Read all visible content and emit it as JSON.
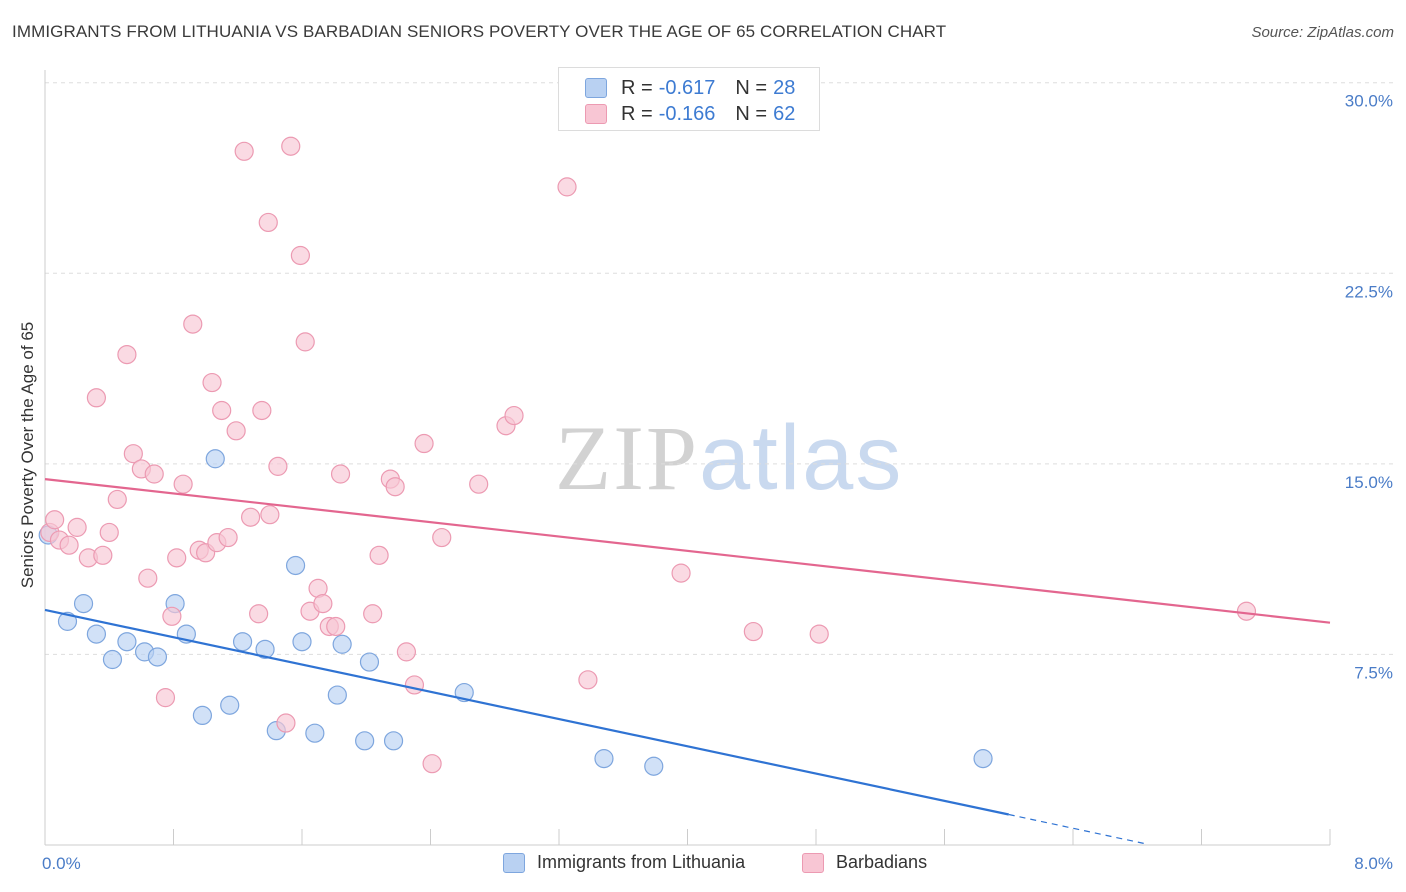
{
  "header": {
    "title": "IMMIGRANTS FROM LITHUANIA VS BARBADIAN SENIORS POVERTY OVER THE AGE OF 65 CORRELATION CHART",
    "source": "Source: ZipAtlas.com"
  },
  "watermark": {
    "zip": "ZIP",
    "atlas": "atlas"
  },
  "legend": {
    "rows": [
      {
        "r_label": "R =",
        "r_value": "-0.617",
        "n_label": "N =",
        "n_value": "28",
        "fill": "#b9d1f2",
        "stroke": "#7ea6de"
      },
      {
        "r_label": "R =",
        "r_value": "-0.166",
        "n_label": "N =",
        "n_value": "62",
        "fill": "#f8c6d4",
        "stroke": "#ec9ab2"
      }
    ]
  },
  "colors": {
    "blue_point_fill": "#b9d1f2",
    "blue_point_stroke": "#7ea6de",
    "blue_line": "#2f73d3",
    "pink_point_fill": "#f8c6d4",
    "pink_point_stroke": "#ec9ab2",
    "pink_line": "#e3668f",
    "grid": "#dddddd",
    "axis": "#cccccc"
  },
  "chart_data": {
    "type": "scatter",
    "title": "IMMIGRANTS FROM LITHUANIA VS BARBADIAN SENIORS POVERTY OVER THE AGE OF 65 CORRELATION CHART",
    "xlabel": "",
    "ylabel": "Seniors Poverty Over the Age of 65",
    "xlim": [
      0,
      8
    ],
    "ylim": [
      0,
      30.5
    ],
    "x_tick_labels": [
      "0.0%",
      "8.0%"
    ],
    "y_ticks": [
      7.5,
      15.0,
      22.5,
      30.0
    ],
    "y_tick_labels": [
      "7.5%",
      "15.0%",
      "22.5%",
      "30.0%"
    ],
    "grid": true,
    "legend_position": "top-center",
    "series": [
      {
        "name": "Immigrants from Lithuania",
        "color": "#7ea6de",
        "points": [
          [
            0.02,
            12.2
          ],
          [
            0.14,
            8.8
          ],
          [
            0.24,
            9.5
          ],
          [
            0.32,
            8.3
          ],
          [
            0.42,
            7.3
          ],
          [
            0.51,
            8.0
          ],
          [
            0.62,
            7.6
          ],
          [
            0.7,
            7.4
          ],
          [
            0.81,
            9.5
          ],
          [
            0.88,
            8.3
          ],
          [
            0.98,
            5.1
          ],
          [
            1.06,
            15.2
          ],
          [
            1.15,
            5.5
          ],
          [
            1.23,
            8.0
          ],
          [
            1.37,
            7.7
          ],
          [
            1.44,
            4.5
          ],
          [
            1.56,
            11.0
          ],
          [
            1.6,
            8.0
          ],
          [
            1.68,
            4.4
          ],
          [
            1.82,
            5.9
          ],
          [
            1.85,
            7.9
          ],
          [
            1.99,
            4.1
          ],
          [
            2.02,
            7.2
          ],
          [
            2.17,
            4.1
          ],
          [
            2.61,
            6.0
          ],
          [
            3.48,
            3.4
          ],
          [
            3.79,
            3.1
          ],
          [
            5.84,
            3.4
          ]
        ],
        "trend": {
          "x": [
            0.0,
            6.0
          ],
          "y": [
            9.25,
            1.2
          ],
          "dashed_to_x": 6.85,
          "dashed_to_y": 0.05
        }
      },
      {
        "name": "Barbadians",
        "color": "#ec9ab2",
        "points": [
          [
            0.03,
            12.3
          ],
          [
            0.06,
            12.8
          ],
          [
            0.09,
            12.0
          ],
          [
            0.15,
            11.8
          ],
          [
            0.2,
            12.5
          ],
          [
            0.27,
            11.3
          ],
          [
            0.32,
            17.6
          ],
          [
            0.36,
            11.4
          ],
          [
            0.4,
            12.3
          ],
          [
            0.45,
            13.6
          ],
          [
            0.51,
            19.3
          ],
          [
            0.55,
            15.4
          ],
          [
            0.6,
            14.8
          ],
          [
            0.64,
            10.5
          ],
          [
            0.68,
            14.6
          ],
          [
            0.75,
            5.8
          ],
          [
            0.79,
            9.0
          ],
          [
            0.82,
            11.3
          ],
          [
            0.86,
            14.2
          ],
          [
            0.92,
            20.5
          ],
          [
            0.96,
            11.6
          ],
          [
            1.0,
            11.5
          ],
          [
            1.04,
            18.2
          ],
          [
            1.07,
            11.9
          ],
          [
            1.1,
            17.1
          ],
          [
            1.14,
            12.1
          ],
          [
            1.19,
            16.3
          ],
          [
            1.24,
            27.3
          ],
          [
            1.28,
            12.9
          ],
          [
            1.33,
            9.1
          ],
          [
            1.35,
            17.1
          ],
          [
            1.39,
            24.5
          ],
          [
            1.45,
            14.9
          ],
          [
            1.5,
            4.8
          ],
          [
            1.53,
            27.5
          ],
          [
            1.59,
            23.2
          ],
          [
            1.62,
            19.8
          ],
          [
            1.65,
            9.2
          ],
          [
            1.7,
            10.1
          ],
          [
            1.73,
            9.5
          ],
          [
            1.77,
            8.6
          ],
          [
            1.81,
            8.6
          ],
          [
            1.84,
            14.6
          ],
          [
            2.04,
            9.1
          ],
          [
            2.08,
            11.4
          ],
          [
            2.15,
            14.4
          ],
          [
            2.18,
            14.1
          ],
          [
            2.25,
            7.6
          ],
          [
            2.3,
            6.3
          ],
          [
            2.36,
            15.8
          ],
          [
            2.41,
            3.2
          ],
          [
            2.47,
            12.1
          ],
          [
            2.7,
            14.2
          ],
          [
            2.87,
            16.5
          ],
          [
            2.92,
            16.9
          ],
          [
            3.25,
            25.9
          ],
          [
            3.38,
            6.5
          ],
          [
            3.96,
            10.7
          ],
          [
            4.41,
            8.4
          ],
          [
            4.82,
            8.3
          ],
          [
            7.48,
            9.2
          ],
          [
            1.4,
            13.0
          ]
        ],
        "trend": {
          "x": [
            0.0,
            8.0
          ],
          "y": [
            14.4,
            8.75
          ]
        }
      }
    ]
  }
}
